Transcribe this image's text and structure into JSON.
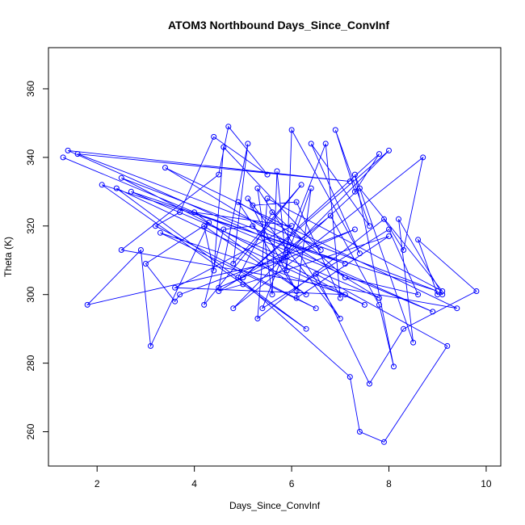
{
  "chart_data": {
    "type": "line",
    "title": "ATOM3 Northbound Days_Since_ConvInf",
    "xlabel": "Days_Since_ConvInf",
    "ylabel": "Theta (K)",
    "xlim": [
      1.0,
      10.3
    ],
    "ylim": [
      250,
      372
    ],
    "xticks": [
      2,
      4,
      6,
      8,
      10
    ],
    "yticks": [
      260,
      280,
      300,
      320,
      340,
      360
    ],
    "color": "#0000ff",
    "grid": false,
    "series": [
      {
        "x": [
          1.3,
          8.9,
          1.4,
          7.2,
          1.6,
          9.0,
          2.1,
          6.3,
          2.4,
          7.5,
          2.5,
          7.1,
          2.7,
          7.8,
          3.4,
          9.4,
          2.5,
          4.5,
          4.7,
          5.5,
          4.4,
          3.7,
          3.2,
          6.5,
          3.3,
          7.1,
          3.6,
          6.0,
          4.0,
          6.3,
          4.2,
          4.4,
          4.6,
          6.6,
          4.9,
          6.1,
          5.1,
          7.0,
          5.3,
          5.6,
          5.7,
          5.9,
          6.0,
          7.4,
          6.4,
          7.6,
          6.9,
          7.3,
          7.8,
          5.0,
          8.0,
          4.8,
          8.7,
          8.3,
          7.9,
          5.3,
          5.5,
          9.1,
          7.4,
          5.8,
          1.8,
          2.9,
          3.1,
          4.3,
          3.0,
          3.6,
          3.7,
          7.3,
          4.5,
          5.1,
          4.8,
          6.2,
          4.2,
          4.6,
          5.2,
          5.9,
          6.4,
          6.1,
          8.0,
          5.0,
          4.5,
          5.9,
          6.8,
          7.8,
          8.1,
          7.3,
          8.5,
          8.2,
          9.1,
          9.0,
          8.6,
          9.8,
          8.3,
          7.6,
          6.5,
          9.2,
          7.9,
          7.4,
          7.2,
          4.9,
          5.6,
          7.1,
          8.6,
          8.0,
          5.4,
          6.7,
          7.0,
          6.1,
          5.2
        ],
        "y": [
          340,
          295,
          342,
          333,
          341,
          301,
          332,
          290,
          331,
          297,
          334,
          309,
          330,
          299,
          337,
          296,
          313,
          335,
          349,
          335,
          346,
          324,
          320,
          296,
          318,
          300,
          302,
          320,
          324,
          300,
          320,
          307,
          343,
          313,
          327,
          301,
          328,
          293,
          331,
          300,
          336,
          307,
          348,
          312,
          344,
          320,
          348,
          330,
          341,
          305,
          342,
          296,
          340,
          313,
          322,
          293,
          328,
          301,
          331,
          310,
          297,
          313,
          285,
          321,
          309,
          298,
          300,
          319,
          302,
          344,
          309,
          332,
          297,
          319,
          320,
          311,
          331,
          299,
          317,
          303,
          301,
          313,
          323,
          297,
          279,
          335,
          286,
          322,
          300,
          300,
          316,
          301,
          290,
          274,
          306,
          285,
          257,
          260,
          276,
          305,
          324,
          305,
          300,
          319,
          296,
          344,
          299,
          327,
          326
        ]
      }
    ]
  }
}
